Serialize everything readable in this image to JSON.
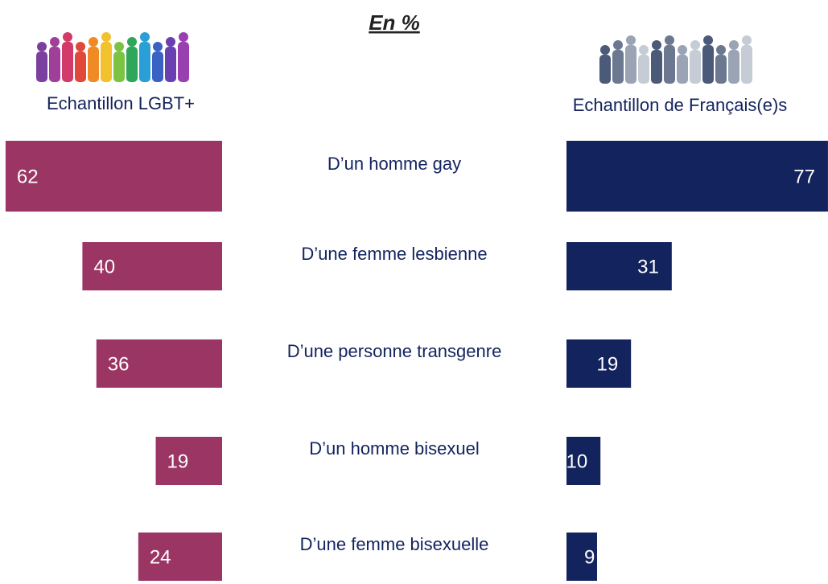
{
  "chart_data": {
    "type": "butterfly",
    "title": "En %",
    "categories": [
      "D’un homme gay",
      "D’une femme lesbienne",
      "D’une personne transgenre",
      "D’un homme bisexuel",
      "D’une femme bisexuelle"
    ],
    "series": [
      {
        "name": "Echantillon LGBT+",
        "color": "#9b3563",
        "values": [
          62,
          40,
          36,
          19,
          24
        ]
      },
      {
        "name": "Echantillon de Français(e)s",
        "color": "#13235e",
        "values": [
          77,
          31,
          19,
          10,
          9
        ]
      }
    ]
  }
}
